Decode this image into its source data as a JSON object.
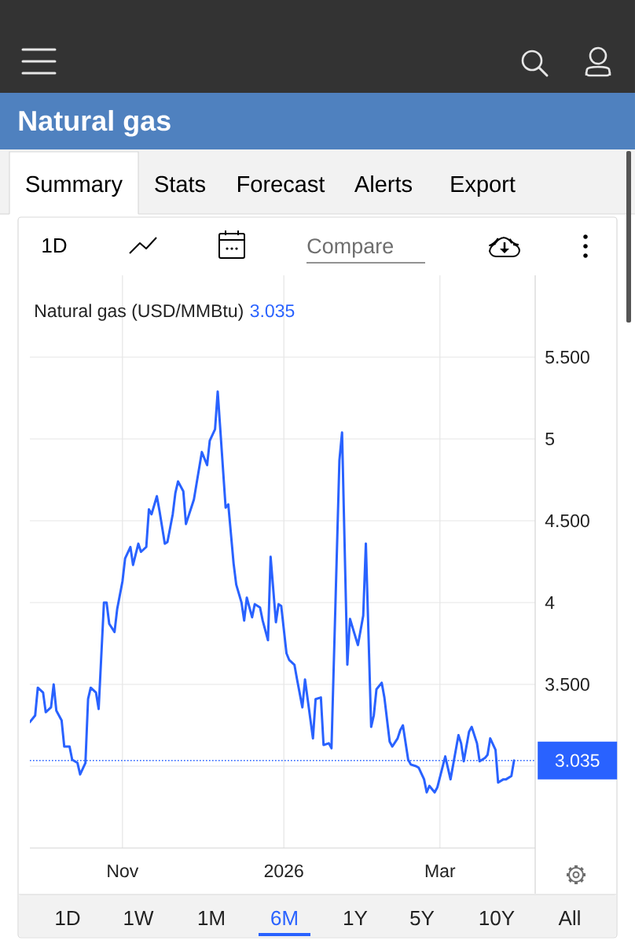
{
  "chart_data": {
    "type": "line",
    "title": "Natural gas",
    "subtitle": "Natural gas (USD/MMBtu)",
    "annotations": [
      "3.035",
      "Summary",
      "Stats",
      "Forecast",
      "Alerts",
      "Export",
      "1D",
      "Compare",
      "1D",
      "1W",
      "1M",
      "6M",
      "1Y",
      "5Y",
      "10Y",
      "All"
    ],
    "x": [
      "2025-09-27",
      "2025-09-29",
      "2025-09-30",
      "2025-10-02",
      "2025-10-03",
      "2025-10-05",
      "2025-10-06",
      "2025-10-07",
      "2025-10-09",
      "2025-10-10",
      "2025-10-12",
      "2025-10-13",
      "2025-10-15",
      "2025-10-16",
      "2025-10-18",
      "2025-10-19",
      "2025-10-20",
      "2025-10-22",
      "2025-10-23",
      "2025-10-25",
      "2025-10-26",
      "2025-10-27",
      "2025-10-29",
      "2025-10-30",
      "2025-11-01",
      "2025-11-02",
      "2025-11-04",
      "2025-11-05",
      "2025-11-07",
      "2025-11-08",
      "2025-11-10",
      "2025-11-11",
      "2025-11-12",
      "2025-11-14",
      "2025-11-15",
      "2025-11-17",
      "2025-11-18",
      "2025-11-20",
      "2025-11-21",
      "2025-11-22",
      "2025-11-24",
      "2025-11-25",
      "2025-11-28",
      "2025-12-01",
      "2025-12-03",
      "2025-12-04",
      "2025-12-06",
      "2025-12-07",
      "2025-12-10",
      "2025-12-11",
      "2025-12-13",
      "2025-12-14",
      "2025-12-16",
      "2025-12-17",
      "2025-12-18",
      "2025-12-20",
      "2025-12-21",
      "2025-12-23",
      "2025-12-24",
      "2025-12-26",
      "2025-12-27",
      "2025-12-29",
      "2025-12-30",
      "2025-12-31",
      "2026-01-02",
      "2026-01-03",
      "2026-01-05",
      "2026-01-06",
      "2026-01-08",
      "2026-01-09",
      "2026-01-10",
      "2026-01-12",
      "2026-01-13",
      "2026-01-15",
      "2026-01-16",
      "2026-01-18",
      "2026-01-19",
      "2026-01-22",
      "2026-01-23",
      "2026-01-25",
      "2026-01-26",
      "2026-01-29",
      "2026-01-31",
      "2026-02-01",
      "2026-02-03",
      "2026-02-04",
      "2026-02-05",
      "2026-02-07",
      "2026-02-08",
      "2026-02-10",
      "2026-02-11",
      "2026-02-13",
      "2026-02-14",
      "2026-02-15",
      "2026-02-17",
      "2026-02-18",
      "2026-02-20",
      "2026-02-21",
      "2026-02-23",
      "2026-02-24",
      "2026-02-25",
      "2026-02-27",
      "2026-02-28",
      "2026-03-03",
      "2026-03-05",
      "2026-03-06",
      "2026-03-08",
      "2026-03-09",
      "2026-03-10",
      "2026-03-12",
      "2026-03-13",
      "2026-03-15",
      "2026-03-16",
      "2026-03-18",
      "2026-03-19",
      "2026-03-20",
      "2026-03-22",
      "2026-03-23",
      "2026-03-25",
      "2026-03-26",
      "2026-03-28",
      "2026-03-29"
    ],
    "values": [
      3.27,
      3.31,
      3.48,
      3.45,
      3.33,
      3.36,
      3.5,
      3.34,
      3.28,
      3.12,
      3.12,
      3.04,
      3.02,
      2.95,
      3.02,
      3.41,
      3.48,
      3.45,
      3.35,
      4.0,
      4.0,
      3.87,
      3.82,
      3.96,
      4.13,
      4.27,
      4.34,
      4.23,
      4.36,
      4.31,
      4.34,
      4.57,
      4.54,
      4.65,
      4.56,
      4.36,
      4.37,
      4.54,
      4.67,
      4.74,
      4.68,
      4.48,
      4.63,
      4.92,
      4.84,
      4.99,
      5.06,
      5.29,
      4.58,
      4.6,
      4.24,
      4.11,
      4.0,
      3.89,
      4.03,
      3.91,
      3.99,
      3.97,
      3.89,
      3.77,
      4.28,
      3.88,
      3.99,
      3.98,
      3.69,
      3.65,
      3.62,
      3.53,
      3.36,
      3.53,
      3.41,
      3.17,
      3.41,
      3.42,
      3.13,
      3.14,
      3.11,
      4.87,
      5.04,
      3.62,
      3.9,
      3.74,
      3.92,
      4.36,
      3.24,
      3.31,
      3.47,
      3.51,
      3.42,
      3.15,
      3.12,
      3.17,
      3.22,
      3.25,
      3.04,
      3.01,
      3.0,
      2.99,
      2.92,
      2.84,
      2.88,
      2.84,
      2.87,
      3.06,
      2.92,
      3.01,
      3.19,
      3.14,
      3.03,
      3.21,
      3.24,
      3.14,
      3.03,
      3.05,
      3.07,
      3.17,
      3.1,
      2.9,
      2.92,
      2.92,
      2.94,
      3.035
    ],
    "color": "#2962ff",
    "xlim": [
      "2025-09-27",
      "2026-04-06"
    ],
    "ylim": [
      2.5,
      6
    ],
    "xticks": [
      {
        "value": "2025-11-01",
        "label": "Nov"
      },
      {
        "value": "2026-01-01",
        "label": "2026"
      },
      {
        "value": "2026-03-01",
        "label": "Mar"
      }
    ],
    "yticks": [
      {
        "value": 3,
        "label": null
      },
      {
        "value": 3.5,
        "label": "3.500"
      },
      4,
      {
        "value": 4.5,
        "label": "4.500"
      },
      5,
      {
        "value": 5.5,
        "label": "5.500"
      }
    ],
    "grid": true,
    "ref_lines": [
      {
        "axis": "y",
        "value": 3.035,
        "label": "3.035",
        "color": "#2962ff",
        "line_style": "dotted"
      }
    ]
  }
}
